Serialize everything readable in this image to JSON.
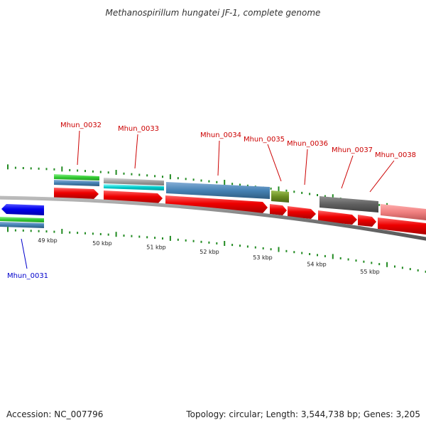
{
  "title": "Methanospirillum hungatei JF-1, complete genome",
  "accession_text": "Accession: NC_007796",
  "topology_text": "Topology: circular; Length: 3,544,738 bp; Genes: 3,205",
  "scale_labels": [
    "49 kbp",
    "50 kbp",
    "51 kbp",
    "52 kbp",
    "53 kbp",
    "54 kbp",
    "55 kbp"
  ],
  "gene_labels": {
    "mhun_0031": "Mhun_0031",
    "mhun_0032": "Mhun_0032",
    "mhun_0033": "Mhun_0033",
    "mhun_0034": "Mhun_0034",
    "mhun_0035": "Mhun_0035",
    "mhun_0036": "Mhun_0036",
    "mhun_0037": "Mhun_0037",
    "mhun_0038": "Mhun_0038"
  },
  "colors": {
    "backbone": "#808080",
    "cds_red": "#ee0000",
    "cds_blue": "#0000ee",
    "cog_green": "#33cc33",
    "cog_steelblue": "#4682b4",
    "cog_cyan": "#00cccc",
    "cog_gray": "#a0a0a0",
    "cog_olive": "#6b8e23",
    "cog_darkgray": "#606060",
    "cog_salmon": "#f08080",
    "tick_green": "#228b22",
    "label_red": "#cc0000",
    "label_blue": "#0000cc"
  }
}
